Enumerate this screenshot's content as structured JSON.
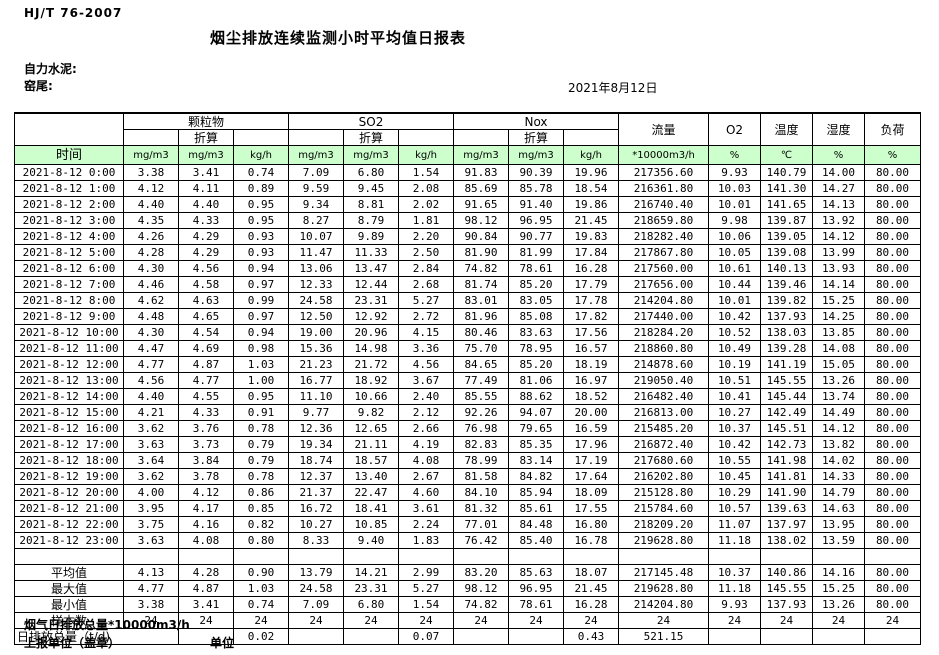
{
  "page": {
    "standard_no": "HJ/T  76-2007",
    "title": "烟尘排放连续监测小时平均值日报表",
    "company": "自力水泥:",
    "location": "窑尾:",
    "date": "2021年8月12日"
  },
  "table": {
    "groups": {
      "pm": "颗粒物",
      "so2": "SO2",
      "nox": "Nox",
      "flow": "流量",
      "o2": "O2",
      "temp": "温度",
      "humidity": "湿度",
      "load": "负荷",
      "converted": "折算"
    },
    "units": {
      "time": "时间",
      "mgm3": "mg/m3",
      "kgh": "kg/h",
      "flow": "*10000m3/h",
      "percent": "%",
      "celsius": "℃"
    },
    "rows": [
      [
        "2021-8-12 0:00",
        "3.38",
        "3.41",
        "0.74",
        "7.09",
        "6.80",
        "1.54",
        "91.83",
        "90.39",
        "19.96",
        "217356.60",
        "9.93",
        "140.79",
        "14.00",
        "80.00"
      ],
      [
        "2021-8-12 1:00",
        "4.12",
        "4.11",
        "0.89",
        "9.59",
        "9.45",
        "2.08",
        "85.69",
        "85.78",
        "18.54",
        "216361.80",
        "10.03",
        "141.30",
        "14.27",
        "80.00"
      ],
      [
        "2021-8-12 2:00",
        "4.40",
        "4.40",
        "0.95",
        "9.34",
        "8.81",
        "2.02",
        "91.65",
        "91.40",
        "19.86",
        "216740.40",
        "10.01",
        "141.65",
        "14.13",
        "80.00"
      ],
      [
        "2021-8-12 3:00",
        "4.35",
        "4.33",
        "0.95",
        "8.27",
        "8.79",
        "1.81",
        "98.12",
        "96.95",
        "21.45",
        "218659.80",
        "9.98",
        "139.87",
        "13.92",
        "80.00"
      ],
      [
        "2021-8-12 4:00",
        "4.26",
        "4.29",
        "0.93",
        "10.07",
        "9.89",
        "2.20",
        "90.84",
        "90.77",
        "19.83",
        "218282.40",
        "10.06",
        "139.05",
        "14.12",
        "80.00"
      ],
      [
        "2021-8-12 5:00",
        "4.28",
        "4.29",
        "0.93",
        "11.47",
        "11.33",
        "2.50",
        "81.90",
        "81.99",
        "17.84",
        "217867.80",
        "10.05",
        "139.08",
        "13.99",
        "80.00"
      ],
      [
        "2021-8-12 6:00",
        "4.30",
        "4.56",
        "0.94",
        "13.06",
        "13.47",
        "2.84",
        "74.82",
        "78.61",
        "16.28",
        "217560.00",
        "10.61",
        "140.13",
        "13.93",
        "80.00"
      ],
      [
        "2021-8-12 7:00",
        "4.46",
        "4.58",
        "0.97",
        "12.33",
        "12.44",
        "2.68",
        "81.74",
        "85.20",
        "17.79",
        "217656.00",
        "10.44",
        "139.46",
        "14.14",
        "80.00"
      ],
      [
        "2021-8-12 8:00",
        "4.62",
        "4.63",
        "0.99",
        "24.58",
        "23.31",
        "5.27",
        "83.01",
        "83.05",
        "17.78",
        "214204.80",
        "10.01",
        "139.82",
        "15.25",
        "80.00"
      ],
      [
        "2021-8-12 9:00",
        "4.48",
        "4.65",
        "0.97",
        "12.50",
        "12.92",
        "2.72",
        "81.96",
        "85.08",
        "17.82",
        "217440.00",
        "10.42",
        "137.93",
        "14.25",
        "80.00"
      ],
      [
        "2021-8-12 10:00",
        "4.30",
        "4.54",
        "0.94",
        "19.00",
        "20.96",
        "4.15",
        "80.46",
        "83.63",
        "17.56",
        "218284.20",
        "10.52",
        "138.03",
        "13.85",
        "80.00"
      ],
      [
        "2021-8-12 11:00",
        "4.47",
        "4.69",
        "0.98",
        "15.36",
        "14.98",
        "3.36",
        "75.70",
        "78.95",
        "16.57",
        "218860.80",
        "10.49",
        "139.28",
        "14.08",
        "80.00"
      ],
      [
        "2021-8-12 12:00",
        "4.77",
        "4.87",
        "1.03",
        "21.23",
        "21.72",
        "4.56",
        "84.65",
        "85.20",
        "18.19",
        "214878.60",
        "10.19",
        "141.19",
        "15.05",
        "80.00"
      ],
      [
        "2021-8-12 13:00",
        "4.56",
        "4.77",
        "1.00",
        "16.77",
        "18.92",
        "3.67",
        "77.49",
        "81.06",
        "16.97",
        "219050.40",
        "10.51",
        "145.55",
        "13.26",
        "80.00"
      ],
      [
        "2021-8-12 14:00",
        "4.40",
        "4.55",
        "0.95",
        "11.10",
        "10.66",
        "2.40",
        "85.55",
        "88.62",
        "18.52",
        "216482.40",
        "10.41",
        "145.44",
        "13.74",
        "80.00"
      ],
      [
        "2021-8-12 15:00",
        "4.21",
        "4.33",
        "0.91",
        "9.77",
        "9.82",
        "2.12",
        "92.26",
        "94.07",
        "20.00",
        "216813.00",
        "10.27",
        "142.49",
        "14.49",
        "80.00"
      ],
      [
        "2021-8-12 16:00",
        "3.62",
        "3.76",
        "0.78",
        "12.36",
        "12.65",
        "2.66",
        "76.98",
        "79.65",
        "16.59",
        "215485.20",
        "10.37",
        "145.51",
        "14.12",
        "80.00"
      ],
      [
        "2021-8-12 17:00",
        "3.63",
        "3.73",
        "0.79",
        "19.34",
        "21.11",
        "4.19",
        "82.83",
        "85.35",
        "17.96",
        "216872.40",
        "10.42",
        "142.73",
        "13.82",
        "80.00"
      ],
      [
        "2021-8-12 18:00",
        "3.64",
        "3.84",
        "0.79",
        "18.74",
        "18.57",
        "4.08",
        "78.99",
        "83.14",
        "17.19",
        "217680.60",
        "10.55",
        "141.98",
        "14.02",
        "80.00"
      ],
      [
        "2021-8-12 19:00",
        "3.62",
        "3.78",
        "0.78",
        "12.37",
        "13.40",
        "2.67",
        "81.58",
        "84.82",
        "17.64",
        "216202.80",
        "10.45",
        "141.81",
        "14.33",
        "80.00"
      ],
      [
        "2021-8-12 20:00",
        "4.00",
        "4.12",
        "0.86",
        "21.37",
        "22.47",
        "4.60",
        "84.10",
        "85.94",
        "18.09",
        "215128.80",
        "10.29",
        "141.90",
        "14.79",
        "80.00"
      ],
      [
        "2021-8-12 21:00",
        "3.95",
        "4.17",
        "0.85",
        "16.72",
        "18.41",
        "3.61",
        "81.32",
        "85.61",
        "17.55",
        "215784.60",
        "10.57",
        "139.63",
        "14.63",
        "80.00"
      ],
      [
        "2021-8-12 22:00",
        "3.75",
        "4.16",
        "0.82",
        "10.27",
        "10.85",
        "2.24",
        "77.01",
        "84.48",
        "16.80",
        "218209.20",
        "11.07",
        "137.97",
        "13.95",
        "80.00"
      ],
      [
        "2021-8-12 23:00",
        "3.63",
        "4.08",
        "0.80",
        "8.33",
        "9.40",
        "1.83",
        "76.42",
        "85.40",
        "16.78",
        "219628.80",
        "11.18",
        "138.02",
        "13.59",
        "80.00"
      ]
    ],
    "summary": [
      {
        "label": "平均值",
        "values": [
          "4.13",
          "4.28",
          "0.90",
          "13.79",
          "14.21",
          "2.99",
          "83.20",
          "85.63",
          "18.07",
          "217145.48",
          "10.37",
          "140.86",
          "14.16",
          "80.00"
        ]
      },
      {
        "label": "最大值",
        "values": [
          "4.77",
          "4.87",
          "1.03",
          "24.58",
          "23.31",
          "5.27",
          "98.12",
          "96.95",
          "21.45",
          "219628.80",
          "11.18",
          "145.55",
          "15.25",
          "80.00"
        ]
      },
      {
        "label": "最小值",
        "values": [
          "3.38",
          "3.41",
          "0.74",
          "7.09",
          "6.80",
          "1.54",
          "74.82",
          "78.61",
          "16.28",
          "214204.80",
          "9.93",
          "137.93",
          "13.26",
          "80.00"
        ]
      },
      {
        "label": "样本数",
        "values": [
          "24",
          "24",
          "24",
          "24",
          "24",
          "24",
          "24",
          "24",
          "24",
          "24",
          "24",
          "24",
          "24",
          "24"
        ]
      }
    ],
    "total_row": {
      "label": "日排放总量（t/d)",
      "values": [
        "",
        "0.02",
        "",
        "",
        "0.07",
        "",
        "",
        "0.43",
        "521.15",
        "",
        "",
        "",
        ""
      ]
    }
  },
  "footer": {
    "flue_gas_total": "烟气日排放总量*10000m3/h",
    "report_unit": "上报单位（盖章）",
    "unit": "单位"
  }
}
